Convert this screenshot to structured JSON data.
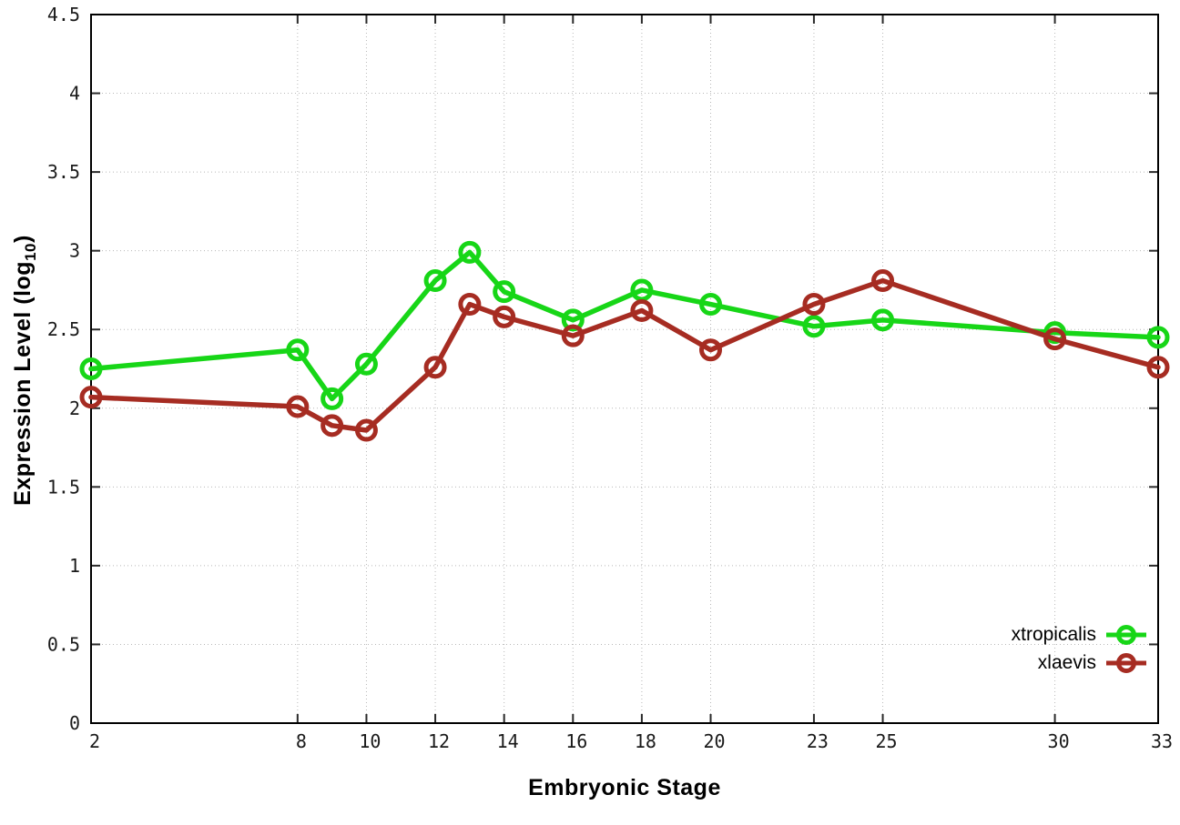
{
  "figure": {
    "y_axis_title_main": "Expression Level (log",
    "y_axis_title_sub": "10",
    "y_axis_title_end": ")",
    "x_axis_title": "Embryonic Stage"
  },
  "chart_data": {
    "type": "line",
    "title": "",
    "xlabel": "Embryonic Stage",
    "ylabel": "Expression Level (log10)",
    "xlim": [
      2,
      33
    ],
    "ylim": [
      0,
      4.5
    ],
    "grid": true,
    "legend_position": "bottom-right",
    "x_ticks": [
      2,
      8,
      10,
      12,
      14,
      16,
      18,
      20,
      23,
      25,
      30,
      33
    ],
    "x_tick_labels": [
      "2",
      "8",
      "10",
      "12",
      "14",
      "16",
      "18",
      "20",
      "23",
      "25",
      "30",
      "33"
    ],
    "y_ticks": [
      0,
      0.5,
      1,
      1.5,
      2,
      2.5,
      3,
      3.5,
      4,
      4.5
    ],
    "y_tick_labels": [
      "0",
      "0.5",
      "1",
      "1.5",
      "2",
      "2.5",
      "3",
      "3.5",
      "4",
      "4.5"
    ],
    "x": [
      2,
      8,
      9,
      10,
      12,
      13,
      14,
      16,
      18,
      20,
      23,
      25,
      30,
      33
    ],
    "series": [
      {
        "name": "xtropicalis",
        "color": "#17d617",
        "values": [
          2.25,
          2.37,
          2.06,
          2.28,
          2.81,
          2.99,
          2.74,
          2.56,
          2.75,
          2.66,
          2.52,
          2.56,
          2.48,
          2.45
        ]
      },
      {
        "name": "xlaevis",
        "color": "#a62c22",
        "values": [
          2.07,
          2.01,
          1.89,
          1.86,
          2.26,
          2.66,
          2.58,
          2.46,
          2.62,
          2.37,
          2.66,
          2.81,
          2.44,
          2.26
        ]
      }
    ]
  }
}
